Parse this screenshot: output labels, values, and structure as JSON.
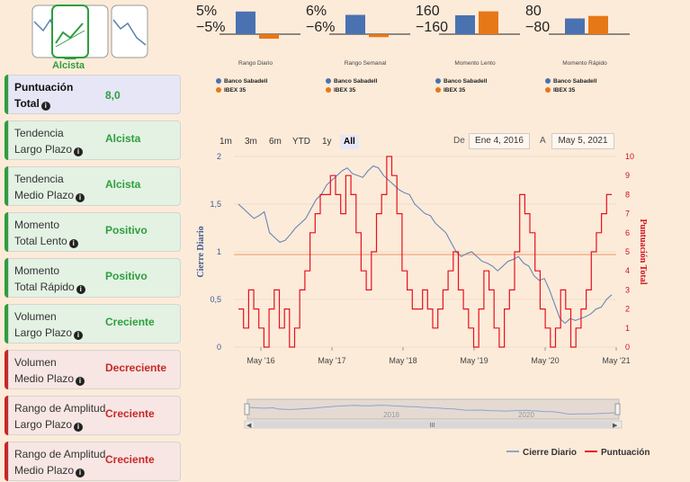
{
  "trend_badge": {
    "label": "Alcista"
  },
  "cards": [
    {
      "label1": "Puntuación",
      "label2": "Total",
      "value": "8,0",
      "kind": "total"
    },
    {
      "label1": "Tendencia",
      "label2": "Largo Plazo",
      "value": "Alcista",
      "kind": "pos"
    },
    {
      "label1": "Tendencia",
      "label2": "Medio Plazo",
      "value": "Alcista",
      "kind": "pos"
    },
    {
      "label1": "Momento",
      "label2": "Total Lento",
      "value": "Positivo",
      "kind": "pos"
    },
    {
      "label1": "Momento",
      "label2": "Total Rápido",
      "value": "Positivo",
      "kind": "pos"
    },
    {
      "label1": "Volumen",
      "label2": "Largo Plazo",
      "value": "Creciente",
      "kind": "pos"
    },
    {
      "label1": "Volumen",
      "label2": "Medio Plazo",
      "value": "Decreciente",
      "kind": "neg"
    },
    {
      "label1": "Rango de Amplitud",
      "label2": "Largo Plazo",
      "value": "Creciente",
      "kind": "neg"
    },
    {
      "label1": "Rango de Amplitud",
      "label2": "Medio Plazo",
      "value": "Creciente",
      "kind": "neg"
    }
  ],
  "mini_charts": [
    {
      "name": "Rango Diario",
      "top": "5%",
      "bottom": "−5%",
      "values": [
        4.5,
        -0.9
      ],
      "max": 5
    },
    {
      "name": "Rango Semanal",
      "top": "6%",
      "bottom": "−6%",
      "values": [
        4.6,
        -0.7
      ],
      "max": 6
    },
    {
      "name": "Momento Lento",
      "top": "160",
      "bottom": "−160",
      "values": [
        120,
        145
      ],
      "max": 160
    },
    {
      "name": "Momento Rápido",
      "top": "80",
      "bottom": "−80",
      "values": [
        50,
        58
      ],
      "max": 80
    }
  ],
  "mini_legend": {
    "series_a": "Banco Sabadell",
    "series_b": "IBEX 35"
  },
  "colors": {
    "sabadell": "#4a72b0",
    "ibex": "#e67817",
    "price": "#5b7fb3",
    "score": "#e8101f",
    "positive": "#2e9e3e",
    "negative": "#c62828"
  },
  "range_selector": {
    "buttons": [
      "1m",
      "3m",
      "6m",
      "YTD",
      "1y",
      "All"
    ],
    "active": "All",
    "from_label": "De",
    "from_value": "Ene 4, 2016",
    "to_label": "A",
    "to_value": "May 5, 2021"
  },
  "chart_data": {
    "type": "line",
    "x_ticks": [
      "May '16",
      "May '17",
      "May '18",
      "May '19",
      "May '20",
      "May '21"
    ],
    "y_left": {
      "label": "Cierre Diario",
      "ticks": [
        "0",
        "0,5",
        "1",
        "1,5",
        "2"
      ],
      "range": [
        0,
        2
      ]
    },
    "y_right": {
      "label": "Puntuación Total",
      "ticks": [
        "0",
        "1",
        "2",
        "3",
        "4",
        "5",
        "6",
        "7",
        "8",
        "9",
        "10"
      ],
      "range": [
        0,
        10
      ]
    },
    "reference_line": 0.97,
    "series": [
      {
        "name": "Cierre Diario",
        "points": [
          1.5,
          1.45,
          1.4,
          1.35,
          1.38,
          1.42,
          1.2,
          1.15,
          1.1,
          1.12,
          1.18,
          1.25,
          1.3,
          1.35,
          1.45,
          1.55,
          1.6,
          1.7,
          1.75,
          1.8,
          1.85,
          1.88,
          1.82,
          1.8,
          1.78,
          1.85,
          1.9,
          1.88,
          1.8,
          1.75,
          1.7,
          1.65,
          1.62,
          1.6,
          1.5,
          1.45,
          1.4,
          1.38,
          1.3,
          1.25,
          1.2,
          1.1,
          1.0,
          0.95,
          0.98,
          1.0,
          0.95,
          0.9,
          0.88,
          0.85,
          0.8,
          0.85,
          0.9,
          0.92,
          0.95,
          0.88,
          0.85,
          0.75,
          0.7,
          0.72,
          0.6,
          0.45,
          0.3,
          0.25,
          0.3,
          0.28,
          0.3,
          0.32,
          0.35,
          0.4,
          0.42,
          0.5,
          0.55
        ]
      },
      {
        "name": "Puntuación",
        "points": [
          2,
          1,
          3,
          2,
          1,
          0,
          2,
          3,
          1,
          2,
          0,
          1,
          3,
          4,
          6,
          7,
          8,
          8,
          9,
          8,
          7,
          9,
          8,
          6,
          4,
          3,
          5,
          7,
          8,
          10,
          9,
          7,
          4,
          3,
          2,
          2,
          3,
          2,
          1,
          2,
          3,
          4,
          5,
          3,
          2,
          1,
          0,
          2,
          4,
          3,
          1,
          0,
          2,
          3,
          5,
          8,
          7,
          6,
          4,
          2,
          1,
          0,
          1,
          3,
          2,
          0,
          1,
          2,
          3,
          5,
          6,
          7,
          8
        ]
      }
    ],
    "navigator": {
      "labels": [
        "2018",
        "2020"
      ]
    }
  },
  "main_legend": {
    "price": "Cierre Diario",
    "score": "Puntuación"
  }
}
